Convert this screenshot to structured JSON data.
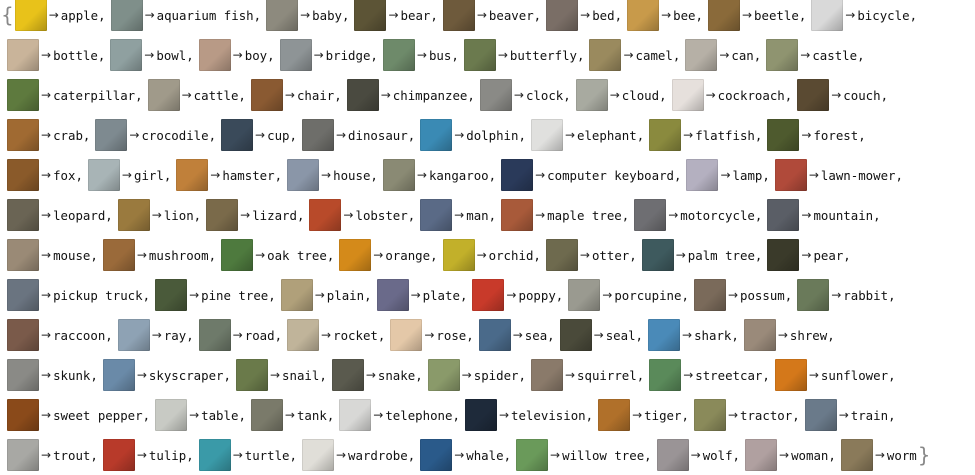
{
  "association": {
    "arrow": "→",
    "separator": ",",
    "brace_open": "{",
    "brace_close": "}",
    "rows": [
      [
        {
          "label": "apple",
          "color": "#e8c21a"
        },
        {
          "label": "aquarium fish",
          "color": "#7f8f8a"
        },
        {
          "label": "baby",
          "color": "#8d8a7e"
        },
        {
          "label": "bear",
          "color": "#5c5436"
        },
        {
          "label": "beaver",
          "color": "#6e5a3c"
        },
        {
          "label": "bed",
          "color": "#7a6e66"
        },
        {
          "label": "bee",
          "color": "#c89a4a"
        },
        {
          "label": "beetle",
          "color": "#8a6a3a"
        },
        {
          "label": "bicycle",
          "color": "#d9d9d9"
        }
      ],
      [
        {
          "label": "bottle",
          "color": "#c9b49a"
        },
        {
          "label": "bowl",
          "color": "#8fa0a0"
        },
        {
          "label": "boy",
          "color": "#b89a86"
        },
        {
          "label": "bridge",
          "color": "#8e9496"
        },
        {
          "label": "bus",
          "color": "#6e8a6a"
        },
        {
          "label": "butterfly",
          "color": "#6b7a4e"
        },
        {
          "label": "camel",
          "color": "#9a8a5e"
        },
        {
          "label": "can",
          "color": "#b6b0a6"
        },
        {
          "label": "castle",
          "color": "#8f9470"
        }
      ],
      [
        {
          "label": "caterpillar",
          "color": "#5e7a3e"
        },
        {
          "label": "cattle",
          "color": "#a09a8a"
        },
        {
          "label": "chair",
          "color": "#8a5a32"
        },
        {
          "label": "chimpanzee",
          "color": "#4a4a40"
        },
        {
          "label": "clock",
          "color": "#8a8a86"
        },
        {
          "label": "cloud",
          "color": "#a8aaa0"
        },
        {
          "label": "cockroach",
          "color": "#e6e0dc"
        },
        {
          "label": "couch",
          "color": "#5a4a32"
        }
      ],
      [
        {
          "label": "crab",
          "color": "#a06a32"
        },
        {
          "label": "crocodile",
          "color": "#7e8a90"
        },
        {
          "label": "cup",
          "color": "#3a4a5a"
        },
        {
          "label": "dinosaur",
          "color": "#6e6e6a"
        },
        {
          "label": "dolphin",
          "color": "#3a8ab4"
        },
        {
          "label": "elephant",
          "color": "#e0e0de"
        },
        {
          "label": "flatfish",
          "color": "#8a8a3e"
        },
        {
          "label": "forest",
          "color": "#4e5a2e"
        }
      ],
      [
        {
          "label": "fox",
          "color": "#8a5a2a"
        },
        {
          "label": "girl",
          "color": "#a8b4b6"
        },
        {
          "label": "hamster",
          "color": "#c0803a"
        },
        {
          "label": "house",
          "color": "#8a96a8"
        },
        {
          "label": "kangaroo",
          "color": "#8a8a74"
        },
        {
          "label": "computer keyboard",
          "color": "#2a3a5a"
        },
        {
          "label": "lamp",
          "color": "#b4b0c0"
        },
        {
          "label": "lawn-mower",
          "color": "#b04a3a"
        }
      ],
      [
        {
          "label": "leopard",
          "color": "#6a6454"
        },
        {
          "label": "lion",
          "color": "#9a7a3e"
        },
        {
          "label": "lizard",
          "color": "#7a6a4a"
        },
        {
          "label": "lobster",
          "color": "#b84a2a"
        },
        {
          "label": "man",
          "color": "#5a6a86"
        },
        {
          "label": "maple tree",
          "color": "#a85a3a"
        },
        {
          "label": "motorcycle",
          "color": "#6e6e72"
        },
        {
          "label": "mountain",
          "color": "#5a5e66"
        }
      ],
      [
        {
          "label": "mouse",
          "color": "#9a8a76"
        },
        {
          "label": "mushroom",
          "color": "#9a6a3a"
        },
        {
          "label": "oak tree",
          "color": "#4e7a3e"
        },
        {
          "label": "orange",
          "color": "#d48a1a"
        },
        {
          "label": "orchid",
          "color": "#c2b02a"
        },
        {
          "label": "otter",
          "color": "#6e6a4e"
        },
        {
          "label": "palm tree",
          "color": "#3e5a5e"
        },
        {
          "label": "pear",
          "color": "#3a3a2a"
        }
      ],
      [
        {
          "label": "pickup truck",
          "color": "#6a7480"
        },
        {
          "label": "pine tree",
          "color": "#4a5a3a"
        },
        {
          "label": "plain",
          "color": "#b0a07a"
        },
        {
          "label": "plate",
          "color": "#6a6a8a"
        },
        {
          "label": "poppy",
          "color": "#c83a2a"
        },
        {
          "label": "porcupine",
          "color": "#9a9a90"
        },
        {
          "label": "possum",
          "color": "#7a6a5a"
        },
        {
          "label": "rabbit",
          "color": "#6a7a5a"
        }
      ],
      [
        {
          "label": "raccoon",
          "color": "#7a5a4a"
        },
        {
          "label": "ray",
          "color": "#8ea2b4"
        },
        {
          "label": "road",
          "color": "#6e7a6a"
        },
        {
          "label": "rocket",
          "color": "#c0b49a"
        },
        {
          "label": "rose",
          "color": "#e4c8a8"
        },
        {
          "label": "sea",
          "color": "#4a6a8a"
        },
        {
          "label": "seal",
          "color": "#4a4a3a"
        },
        {
          "label": "shark",
          "color": "#4a8ab8"
        },
        {
          "label": "shrew",
          "color": "#9a8a7a"
        }
      ],
      [
        {
          "label": "skunk",
          "color": "#8a8a86"
        },
        {
          "label": "skyscraper",
          "color": "#6a8aa8"
        },
        {
          "label": "snail",
          "color": "#6a7a4a"
        },
        {
          "label": "snake",
          "color": "#5a5a4e"
        },
        {
          "label": "spider",
          "color": "#8a9a6a"
        },
        {
          "label": "squirrel",
          "color": "#8a7a6a"
        },
        {
          "label": "streetcar",
          "color": "#5a8a5a"
        },
        {
          "label": "sunflower",
          "color": "#d4781a"
        }
      ],
      [
        {
          "label": "sweet pepper",
          "color": "#8a4a1a"
        },
        {
          "label": "table",
          "color": "#c8cac4"
        },
        {
          "label": "tank",
          "color": "#7a7a6a"
        },
        {
          "label": "telephone",
          "color": "#d8d8d6"
        },
        {
          "label": "television",
          "color": "#1e2a3a"
        },
        {
          "label": "tiger",
          "color": "#b0702a"
        },
        {
          "label": "tractor",
          "color": "#8a8a5a"
        },
        {
          "label": "train",
          "color": "#6a7a8a"
        }
      ],
      [
        {
          "label": "trout",
          "color": "#a8a8a4"
        },
        {
          "label": "tulip",
          "color": "#b83a2a"
        },
        {
          "label": "turtle",
          "color": "#3a9aa8"
        },
        {
          "label": "wardrobe",
          "color": "#e0ded8"
        },
        {
          "label": "whale",
          "color": "#2a5a8a"
        },
        {
          "label": "willow tree",
          "color": "#6a9a5a"
        },
        {
          "label": "wolf",
          "color": "#9a9496"
        },
        {
          "label": "woman",
          "color": "#b0a0a0"
        },
        {
          "label": "worm",
          "color": "#8a7a5a"
        }
      ]
    ]
  }
}
